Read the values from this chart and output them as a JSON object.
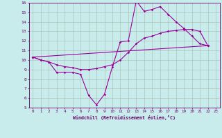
{
  "xlabel": "Windchill (Refroidissement éolien,°C)",
  "bg_color": "#c8ecec",
  "line_color": "#990099",
  "grid_color": "#aabbaa",
  "xlim": [
    -0.5,
    23.5
  ],
  "ylim": [
    5,
    16
  ],
  "xticks": [
    0,
    1,
    2,
    3,
    4,
    5,
    6,
    7,
    8,
    9,
    10,
    11,
    12,
    13,
    14,
    15,
    16,
    17,
    18,
    19,
    20,
    21,
    22,
    23
  ],
  "yticks": [
    5,
    6,
    7,
    8,
    9,
    10,
    11,
    12,
    13,
    14,
    15,
    16
  ],
  "line1_x": [
    0,
    1,
    2,
    3,
    4,
    5,
    6,
    7,
    8,
    9,
    10,
    11,
    12,
    13,
    14,
    15,
    16,
    17,
    18,
    19,
    20,
    21,
    22
  ],
  "line1_y": [
    10.3,
    10.0,
    9.8,
    8.7,
    8.7,
    8.7,
    8.5,
    6.3,
    5.3,
    6.4,
    9.3,
    11.9,
    12.0,
    16.2,
    15.1,
    15.3,
    15.6,
    14.8,
    14.0,
    13.3,
    12.5,
    11.7,
    11.5
  ],
  "line2_x": [
    0,
    1,
    2,
    3,
    4,
    5,
    6,
    7,
    8,
    9,
    10,
    11,
    12,
    13,
    14,
    15,
    16,
    17,
    18,
    19,
    20,
    21,
    22
  ],
  "line2_y": [
    10.3,
    10.0,
    9.8,
    9.5,
    9.3,
    9.2,
    9.0,
    9.0,
    9.1,
    9.3,
    9.5,
    10.0,
    10.8,
    11.7,
    12.3,
    12.5,
    12.8,
    13.0,
    13.1,
    13.2,
    13.2,
    13.0,
    11.5
  ],
  "line3_x": [
    0,
    22
  ],
  "line3_y": [
    10.3,
    11.5
  ]
}
